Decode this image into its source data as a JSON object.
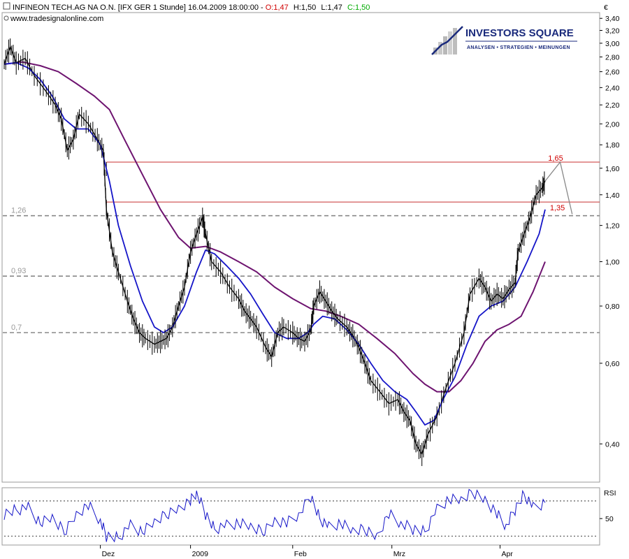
{
  "header": {
    "line1": "INFINEON TECH.AG NA O.N. [IFX GER  1 Stunde] 16.04.2009 18:00:00 - ",
    "open": "O:1,47",
    "high": "H:1,50",
    "low": "L:1,47",
    "close": "C:1,50",
    "source": "www.tradesignalonline.com"
  },
  "logo": {
    "name": "INVESTORS SQUARE",
    "tagline": "ANALYSEN • STRATEGIEN • MEINUNGEN"
  },
  "currency_symbol": "€",
  "rsi_label": "RSI",
  "colors": {
    "price": "#000000",
    "ma_fast": "#1515c8",
    "ma_slow": "#6e1470",
    "resistance": "#c83232",
    "level_dashed": "#888888",
    "projection": "#888888",
    "annotation": "#d00000",
    "open": "#d00000",
    "close": "#00aa00"
  },
  "chart_data": [
    {
      "type": "line",
      "title": "INFINEON TECH.AG NA O.N. [IFX GER  1 Stunde]",
      "y_scale": "log",
      "ylim": [
        0.33,
        3.5
      ],
      "y_ticks": [
        {
          "v": 3.4,
          "label": "3,40"
        },
        {
          "v": 3.2,
          "label": "3,20"
        },
        {
          "v": 3.0,
          "label": "3,00"
        },
        {
          "v": 2.8,
          "label": "2,80"
        },
        {
          "v": 2.6,
          "label": "2,60"
        },
        {
          "v": 2.4,
          "label": "2,40"
        },
        {
          "v": 2.2,
          "label": "2,20"
        },
        {
          "v": 2.0,
          "label": "2,00"
        },
        {
          "v": 1.8,
          "label": "1,80"
        },
        {
          "v": 1.6,
          "label": "1,60"
        },
        {
          "v": 1.4,
          "label": "1,40"
        },
        {
          "v": 1.2,
          "label": "1,20"
        },
        {
          "v": 1.0,
          "label": "1,00"
        },
        {
          "v": 0.8,
          "label": "0,80"
        },
        {
          "v": 0.6,
          "label": "0,60"
        },
        {
          "v": 0.4,
          "label": "0,40"
        }
      ],
      "x_ticks": [
        {
          "pos": 0.16,
          "label": "Dez"
        },
        {
          "pos": 0.31,
          "label": "2009"
        },
        {
          "pos": 0.48,
          "label": "Feb"
        },
        {
          "pos": 0.645,
          "label": "Mrz"
        },
        {
          "pos": 0.825,
          "label": "Apr"
        }
      ],
      "series": [
        {
          "key": "price",
          "points": [
            [
              0.0,
              2.7
            ],
            [
              0.01,
              2.95
            ],
            [
              0.02,
              2.72
            ],
            [
              0.035,
              2.78
            ],
            [
              0.05,
              2.55
            ],
            [
              0.07,
              2.35
            ],
            [
              0.085,
              2.2
            ],
            [
              0.095,
              2.05
            ],
            [
              0.105,
              1.75
            ],
            [
              0.115,
              1.85
            ],
            [
              0.125,
              2.1
            ],
            [
              0.14,
              2.0
            ],
            [
              0.155,
              1.85
            ],
            [
              0.165,
              1.75
            ],
            [
              0.17,
              1.3
            ],
            [
              0.18,
              1.05
            ],
            [
              0.19,
              0.95
            ],
            [
              0.205,
              0.82
            ],
            [
              0.215,
              0.75
            ],
            [
              0.225,
              0.7
            ],
            [
              0.235,
              0.68
            ],
            [
              0.25,
              0.66
            ],
            [
              0.26,
              0.67
            ],
            [
              0.27,
              0.68
            ],
            [
              0.28,
              0.72
            ],
            [
              0.29,
              0.8
            ],
            [
              0.3,
              0.88
            ],
            [
              0.31,
              1.05
            ],
            [
              0.32,
              1.15
            ],
            [
              0.33,
              1.25
            ],
            [
              0.335,
              1.15
            ],
            [
              0.345,
              1.0
            ],
            [
              0.36,
              0.95
            ],
            [
              0.375,
              0.88
            ],
            [
              0.39,
              0.83
            ],
            [
              0.4,
              0.78
            ],
            [
              0.41,
              0.75
            ],
            [
              0.42,
              0.72
            ],
            [
              0.435,
              0.65
            ],
            [
              0.445,
              0.62
            ],
            [
              0.455,
              0.7
            ],
            [
              0.465,
              0.72
            ],
            [
              0.48,
              0.7
            ],
            [
              0.49,
              0.68
            ],
            [
              0.5,
              0.67
            ],
            [
              0.51,
              0.71
            ],
            [
              0.515,
              0.8
            ],
            [
              0.525,
              0.86
            ],
            [
              0.535,
              0.82
            ],
            [
              0.545,
              0.78
            ],
            [
              0.555,
              0.75
            ],
            [
              0.57,
              0.72
            ],
            [
              0.58,
              0.69
            ],
            [
              0.59,
              0.65
            ],
            [
              0.6,
              0.6
            ],
            [
              0.61,
              0.55
            ],
            [
              0.625,
              0.52
            ],
            [
              0.64,
              0.49
            ],
            [
              0.655,
              0.5
            ],
            [
              0.665,
              0.47
            ],
            [
              0.675,
              0.45
            ],
            [
              0.685,
              0.4
            ],
            [
              0.695,
              0.38
            ],
            [
              0.705,
              0.42
            ],
            [
              0.72,
              0.46
            ],
            [
              0.735,
              0.53
            ],
            [
              0.75,
              0.6
            ],
            [
              0.765,
              0.7
            ],
            [
              0.775,
              0.85
            ],
            [
              0.79,
              0.92
            ],
            [
              0.8,
              0.88
            ],
            [
              0.81,
              0.82
            ],
            [
              0.82,
              0.85
            ],
            [
              0.83,
              0.83
            ],
            [
              0.84,
              0.87
            ],
            [
              0.85,
              0.9
            ],
            [
              0.855,
              1.05
            ],
            [
              0.865,
              1.15
            ],
            [
              0.875,
              1.25
            ],
            [
              0.885,
              1.4
            ],
            [
              0.895,
              1.45
            ],
            [
              0.9,
              1.5
            ]
          ]
        },
        {
          "key": "ma_fast",
          "points": [
            [
              0.0,
              2.7
            ],
            [
              0.02,
              2.72
            ],
            [
              0.04,
              2.65
            ],
            [
              0.06,
              2.5
            ],
            [
              0.08,
              2.3
            ],
            [
              0.1,
              2.05
            ],
            [
              0.12,
              1.95
            ],
            [
              0.14,
              1.95
            ],
            [
              0.16,
              1.8
            ],
            [
              0.175,
              1.5
            ],
            [
              0.19,
              1.2
            ],
            [
              0.21,
              0.98
            ],
            [
              0.23,
              0.82
            ],
            [
              0.25,
              0.72
            ],
            [
              0.265,
              0.7
            ],
            [
              0.28,
              0.72
            ],
            [
              0.3,
              0.8
            ],
            [
              0.32,
              0.95
            ],
            [
              0.335,
              1.06
            ],
            [
              0.35,
              1.04
            ],
            [
              0.37,
              0.98
            ],
            [
              0.39,
              0.92
            ],
            [
              0.41,
              0.85
            ],
            [
              0.43,
              0.77
            ],
            [
              0.45,
              0.7
            ],
            [
              0.47,
              0.68
            ],
            [
              0.49,
              0.68
            ],
            [
              0.505,
              0.7
            ],
            [
              0.515,
              0.73
            ],
            [
              0.53,
              0.76
            ],
            [
              0.55,
              0.75
            ],
            [
              0.57,
              0.71
            ],
            [
              0.59,
              0.66
            ],
            [
              0.61,
              0.6
            ],
            [
              0.63,
              0.55
            ],
            [
              0.65,
              0.52
            ],
            [
              0.67,
              0.5
            ],
            [
              0.685,
              0.47
            ],
            [
              0.7,
              0.44
            ],
            [
              0.715,
              0.45
            ],
            [
              0.73,
              0.5
            ],
            [
              0.75,
              0.56
            ],
            [
              0.77,
              0.66
            ],
            [
              0.79,
              0.76
            ],
            [
              0.81,
              0.8
            ],
            [
              0.83,
              0.82
            ],
            [
              0.85,
              0.88
            ],
            [
              0.87,
              1.0
            ],
            [
              0.89,
              1.15
            ],
            [
              0.9,
              1.3
            ]
          ]
        },
        {
          "key": "ma_slow",
          "points": [
            [
              0.0,
              2.7
            ],
            [
              0.03,
              2.73
            ],
            [
              0.06,
              2.68
            ],
            [
              0.09,
              2.6
            ],
            [
              0.12,
              2.45
            ],
            [
              0.15,
              2.3
            ],
            [
              0.175,
              2.15
            ],
            [
              0.2,
              1.85
            ],
            [
              0.23,
              1.55
            ],
            [
              0.26,
              1.3
            ],
            [
              0.29,
              1.13
            ],
            [
              0.31,
              1.07
            ],
            [
              0.335,
              1.08
            ],
            [
              0.36,
              1.05
            ],
            [
              0.39,
              1.0
            ],
            [
              0.42,
              0.95
            ],
            [
              0.45,
              0.88
            ],
            [
              0.48,
              0.83
            ],
            [
              0.51,
              0.79
            ],
            [
              0.535,
              0.78
            ],
            [
              0.56,
              0.76
            ],
            [
              0.59,
              0.73
            ],
            [
              0.62,
              0.68
            ],
            [
              0.65,
              0.63
            ],
            [
              0.68,
              0.57
            ],
            [
              0.7,
              0.54
            ],
            [
              0.72,
              0.52
            ],
            [
              0.74,
              0.52
            ],
            [
              0.76,
              0.55
            ],
            [
              0.78,
              0.6
            ],
            [
              0.8,
              0.67
            ],
            [
              0.82,
              0.71
            ],
            [
              0.84,
              0.73
            ],
            [
              0.86,
              0.76
            ],
            [
              0.88,
              0.86
            ],
            [
              0.9,
              1.0
            ]
          ]
        }
      ],
      "levels_dashed": [
        {
          "value": 1.26,
          "label": "1,26"
        },
        {
          "value": 0.93,
          "label": "0,93"
        },
        {
          "value": 0.7,
          "label": "0,7"
        }
      ],
      "resistance_lines": [
        {
          "value": 1.65,
          "label": "1,65",
          "start": 0.17
        },
        {
          "value": 1.35,
          "label": "1,35",
          "start": 0.17
        }
      ],
      "projection": [
        [
          0.9,
          1.5
        ],
        [
          0.925,
          1.65
        ],
        [
          0.945,
          1.27
        ]
      ]
    },
    {
      "type": "line",
      "title": "RSI",
      "ylim": [
        20,
        85
      ],
      "y_ticks": [
        {
          "v": 50,
          "label": "50"
        }
      ],
      "levels_dotted": [
        70,
        30
      ],
      "series": [
        {
          "key": "rsi",
          "points": [
            [
              0.0,
              55
            ],
            [
              0.02,
              60
            ],
            [
              0.04,
              62
            ],
            [
              0.06,
              45
            ],
            [
              0.08,
              50
            ],
            [
              0.1,
              35
            ],
            [
              0.12,
              55
            ],
            [
              0.14,
              65
            ],
            [
              0.16,
              48
            ],
            [
              0.17,
              30
            ],
            [
              0.19,
              28
            ],
            [
              0.21,
              42
            ],
            [
              0.23,
              35
            ],
            [
              0.25,
              45
            ],
            [
              0.27,
              55
            ],
            [
              0.29,
              62
            ],
            [
              0.31,
              70
            ],
            [
              0.32,
              80
            ],
            [
              0.335,
              55
            ],
            [
              0.35,
              38
            ],
            [
              0.37,
              42
            ],
            [
              0.39,
              45
            ],
            [
              0.41,
              40
            ],
            [
              0.43,
              35
            ],
            [
              0.45,
              48
            ],
            [
              0.47,
              45
            ],
            [
              0.49,
              55
            ],
            [
              0.51,
              75
            ],
            [
              0.525,
              50
            ],
            [
              0.54,
              40
            ],
            [
              0.56,
              45
            ],
            [
              0.58,
              35
            ],
            [
              0.6,
              38
            ],
            [
              0.62,
              30
            ],
            [
              0.64,
              55
            ],
            [
              0.66,
              45
            ],
            [
              0.68,
              38
            ],
            [
              0.7,
              35
            ],
            [
              0.72,
              60
            ],
            [
              0.74,
              72
            ],
            [
              0.76,
              70
            ],
            [
              0.78,
              80
            ],
            [
              0.8,
              72
            ],
            [
              0.82,
              55
            ],
            [
              0.835,
              42
            ],
            [
              0.85,
              60
            ],
            [
              0.865,
              78
            ],
            [
              0.88,
              62
            ],
            [
              0.9,
              68
            ]
          ]
        }
      ]
    }
  ]
}
